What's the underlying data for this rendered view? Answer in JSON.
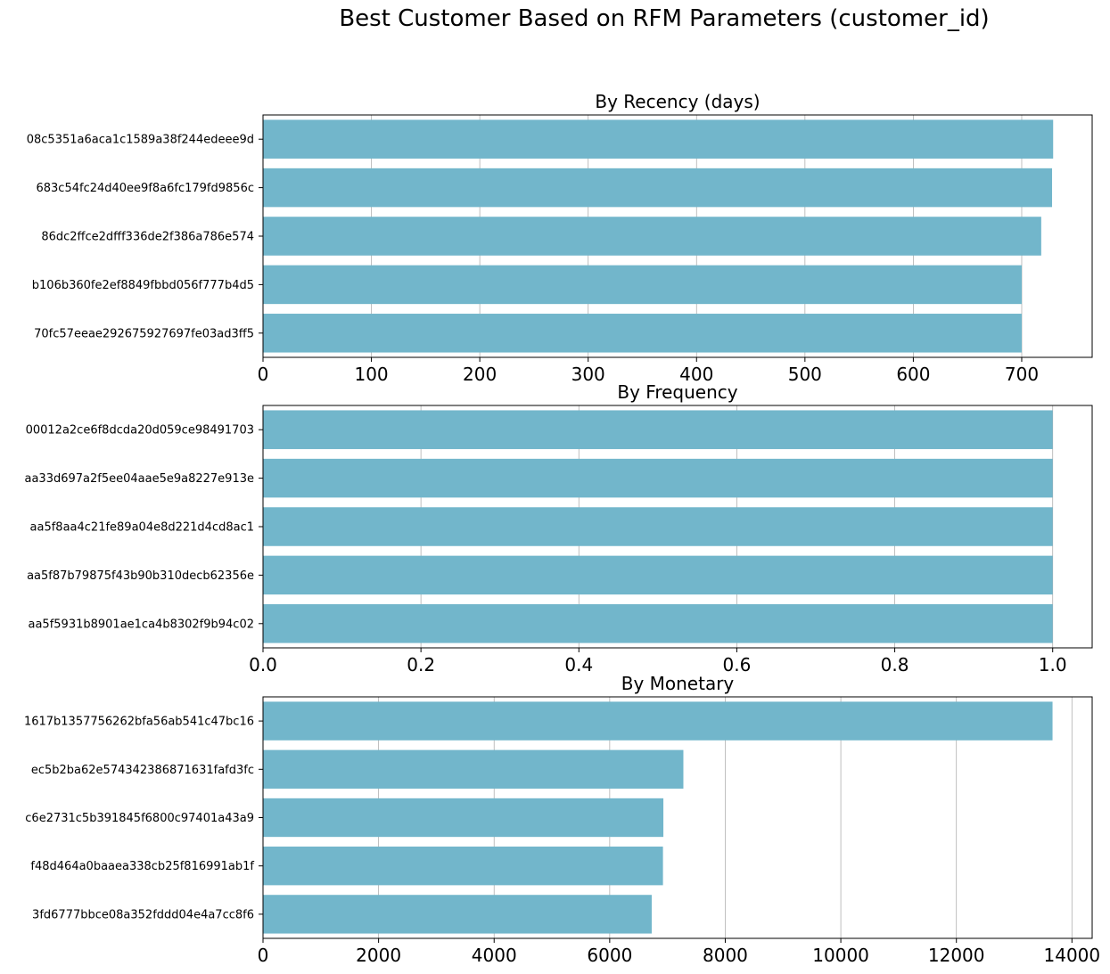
{
  "figure": {
    "title": "Best Customer Based on RFM Parameters (customer_id)"
  },
  "chart_data": [
    {
      "type": "bar",
      "orientation": "horizontal",
      "title": "By Recency (days)",
      "xlabel": "",
      "ylabel": "",
      "categories": [
        "08c5351a6aca1c1589a38f244edeee9d",
        "683c54fc24d40ee9f8a6fc179fd9856c",
        "86dc2ffce2dfff336de2f386a786e574",
        "b106b360fe2ef8849fbbd056f777b4d5",
        "70fc57eeae292675927697fe03ad3ff5"
      ],
      "values": [
        729,
        728,
        718,
        700,
        700
      ],
      "xlim": [
        0,
        765
      ],
      "xticks": [
        0,
        100,
        200,
        300,
        400,
        500,
        600,
        700
      ],
      "grid": "x",
      "bar_color": "#72B6CB"
    },
    {
      "type": "bar",
      "orientation": "horizontal",
      "title": "By Frequency",
      "xlabel": "",
      "ylabel": "",
      "categories": [
        "00012a2ce6f8dcda20d059ce98491703",
        "aa33d697a2f5ee04aae5e9a8227e913e",
        "aa5f8aa4c21fe89a04e8d221d4cd8ac1",
        "aa5f87b79875f43b90b310decb62356e",
        "aa5f5931b8901ae1ca4b8302f9b94c02"
      ],
      "values": [
        1,
        1,
        1,
        1,
        1
      ],
      "xlim": [
        0,
        1.05
      ],
      "xticks": [
        "0.0",
        "0.2",
        "0.4",
        "0.6",
        "0.8",
        "1.0"
      ],
      "grid": "x",
      "bar_color": "#72B6CB"
    },
    {
      "type": "bar",
      "orientation": "horizontal",
      "title": "By Monetary",
      "xlabel": "",
      "ylabel": "",
      "categories": [
        "1617b1357756262bfa56ab541c47bc16",
        "ec5b2ba62e574342386871631fafd3fc",
        "c6e2731c5b391845f6800c97401a43a9",
        "f48d464a0baaea338cb25f816991ab1f",
        "3fd6777bbce08a352fddd04e4a7cc8f6"
      ],
      "values": [
        13664,
        7275,
        6929,
        6922,
        6727
      ],
      "xlim": [
        0,
        14350
      ],
      "xticks": [
        0,
        2000,
        4000,
        6000,
        8000,
        10000,
        12000,
        14000
      ],
      "grid": "x",
      "bar_color": "#72B6CB"
    }
  ]
}
